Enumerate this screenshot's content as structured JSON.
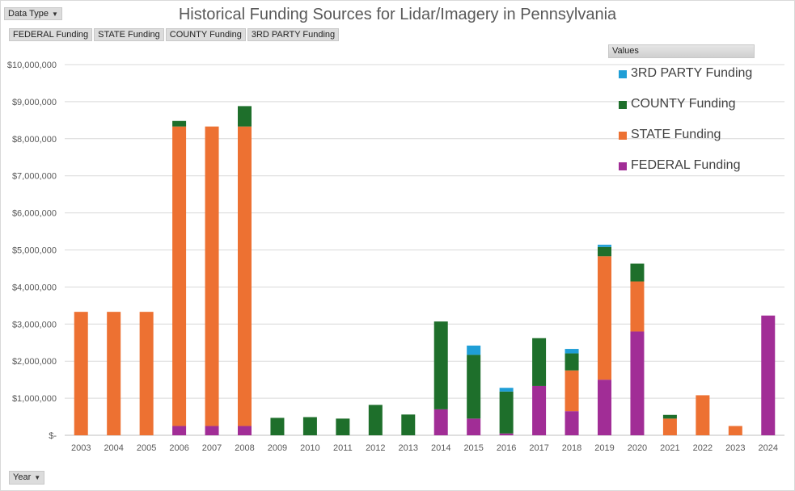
{
  "buttons": {
    "data_type": "Data Type",
    "year": "Year",
    "filters": [
      "FEDERAL Funding",
      "STATE Funding",
      "COUNTY Funding",
      "3RD PARTY Funding"
    ]
  },
  "legend": {
    "header": "Values",
    "items": [
      {
        "label": "3RD PARTY Funding",
        "color": "#1f9ed6"
      },
      {
        "label": "COUNTY Funding",
        "color": "#1e6f2b"
      },
      {
        "label": "STATE Funding",
        "color": "#ed7132"
      },
      {
        "label": "FEDERAL Funding",
        "color": "#a12d96"
      }
    ]
  },
  "chart_data": {
    "type": "bar",
    "stacked": true,
    "title": "Historical Funding Sources for Lidar/Imagery in Pennsylvania",
    "xlabel": "",
    "ylabel": "",
    "ylim": [
      0,
      10000000
    ],
    "y_ticks": [
      "$-",
      "$1,000,000",
      "$2,000,000",
      "$3,000,000",
      "$4,000,000",
      "$5,000,000",
      "$6,000,000",
      "$7,000,000",
      "$8,000,000",
      "$9,000,000",
      "$10,000,000"
    ],
    "grid": true,
    "legend_position": "top-right",
    "categories": [
      "2003",
      "2004",
      "2005",
      "2006",
      "2007",
      "2008",
      "2009",
      "2010",
      "2011",
      "2012",
      "2013",
      "2014",
      "2015",
      "2016",
      "2017",
      "2018",
      "2019",
      "2020",
      "2021",
      "2022",
      "2023",
      "2024"
    ],
    "series": [
      {
        "name": "FEDERAL Funding",
        "color": "#a12d96",
        "values": [
          0,
          0,
          0,
          250000,
          250000,
          250000,
          0,
          0,
          0,
          0,
          0,
          700000,
          450000,
          50000,
          1330000,
          650000,
          1500000,
          2800000,
          0,
          0,
          0,
          3230000
        ]
      },
      {
        "name": "STATE Funding",
        "color": "#ed7132",
        "values": [
          3330000,
          3330000,
          3330000,
          8080000,
          8080000,
          8080000,
          0,
          0,
          0,
          0,
          0,
          0,
          0,
          0,
          0,
          1100000,
          3330000,
          1350000,
          450000,
          1080000,
          250000,
          0
        ]
      },
      {
        "name": "COUNTY Funding",
        "color": "#1e6f2b",
        "values": [
          0,
          0,
          0,
          150000,
          0,
          550000,
          470000,
          490000,
          450000,
          820000,
          560000,
          2370000,
          1720000,
          1130000,
          1290000,
          460000,
          250000,
          480000,
          100000,
          0,
          0,
          0
        ]
      },
      {
        "name": "3RD PARTY Funding",
        "color": "#1f9ed6",
        "values": [
          0,
          0,
          0,
          0,
          0,
          0,
          0,
          0,
          0,
          0,
          0,
          0,
          250000,
          100000,
          0,
          120000,
          60000,
          0,
          0,
          0,
          0,
          0
        ]
      }
    ]
  }
}
